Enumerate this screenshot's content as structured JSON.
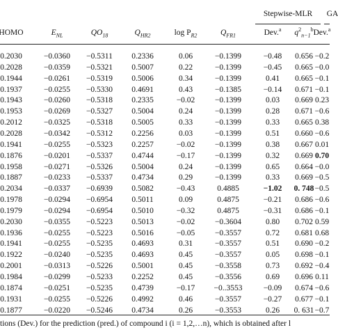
{
  "table": {
    "group_headers": [
      "Stepwise-MLR",
      "GA"
    ],
    "columns": [
      {
        "main": "HOMO"
      },
      {
        "main": "E",
        "sub": "NL"
      },
      {
        "main": "QO",
        "sub": "18"
      },
      {
        "main": "Q",
        "sub": "HR2"
      },
      {
        "main": "log P",
        "sub": "R2"
      },
      {
        "main": "Q",
        "sub": "FR1"
      },
      {
        "main": "Dev.",
        "sup": "a"
      },
      {
        "main": "q",
        "sup": "2",
        "sub": "n−1",
        "sup2": "b"
      },
      {
        "main": "Dev.",
        "sup": "a"
      }
    ],
    "rows": [
      [
        "0.2030",
        "−0.0360",
        "−0.5311",
        "0.2336",
        "0.06",
        "−0.1399",
        "−0.48",
        "0.656",
        "−0.2"
      ],
      [
        "0.2028",
        "−0.0359",
        "−0.5321",
        "0.5007",
        "0.22",
        "−0.1399",
        "−0.45",
        "0.665",
        "−0.0"
      ],
      [
        "0.1944",
        "−0.0261",
        "−0.5319",
        "0.5006",
        "0.34",
        "−0.1399",
        "0.41",
        "0.665",
        "−0.1"
      ],
      [
        "0.1937",
        "−0.0255",
        "−0.5330",
        "0.4691",
        "0.43",
        "−0.1385",
        "−0.14",
        "0.671",
        "−0.1"
      ],
      [
        "0.1943",
        "−0.0260",
        "−0.5318",
        "0.2335",
        "−0.02",
        "−0.1399",
        "0.03",
        "0.669",
        "0.23"
      ],
      [
        "0.1953",
        "−0.0269",
        "−0.5327",
        "0.5004",
        "0.24",
        "−0.1399",
        "0.28",
        "0.671",
        "−0.6"
      ],
      [
        "0.2012",
        "−0.0325",
        "−0.5318",
        "0.5005",
        "0.33",
        "−0.1399",
        "0.33",
        "0.665",
        "0.38"
      ],
      [
        "0.2028",
        "−0.0342",
        "−0.5312",
        "0.2256",
        "0.03",
        "−0.1399",
        "0.51",
        "0.660",
        "−0.6"
      ],
      [
        "0.1941",
        "−0.0255",
        "−0.5323",
        "0.2257",
        "−0.02",
        "−0.1399",
        "0.38",
        "0.667",
        "0.01"
      ],
      [
        "0.1876",
        "−0.0201",
        "−0.5337",
        "0.4744",
        "−0.17",
        "−0.1399",
        "0.32",
        "0.669",
        "0.70"
      ],
      [
        "0.1958",
        "−0.0271",
        "−0.5326",
        "0.5004",
        "0.24",
        "−0.1399",
        "0.65",
        "0.664",
        "−0.0"
      ],
      [
        "0.1887",
        "−0.0233",
        "−0.5337",
        "0.4734",
        "0.29",
        "−0.1399",
        "0.33",
        "0.669",
        "−0.5"
      ],
      [
        "0.2034",
        "−0.0337",
        "−0.6939",
        "0.5082",
        "−0.43",
        "0.4885",
        "−1.02",
        "0. 748",
        "−0.5"
      ],
      [
        "0.1978",
        "−0.0294",
        "−0.6954",
        "0.5011",
        "0.09",
        "0.4875",
        "−0.21",
        "0.686",
        "−0.6"
      ],
      [
        "0.1979",
        "−0.0294",
        "−0.6954",
        "0.5010",
        "−0.32",
        "0.4875",
        "−0.31",
        "0.686",
        "−0.1"
      ],
      [
        "0.2030",
        "−0.0355",
        "−0.5223",
        "0.5013",
        "−0.02",
        "−0.3604",
        "0.80",
        "0.702",
        "0.59"
      ],
      [
        "0.1936",
        "−0.0255",
        "−0.5223",
        "0.5016",
        "−0.05",
        "−0.3557",
        "0.72",
        "0.681",
        "0.68"
      ],
      [
        "0.1941",
        "−0.0255",
        "−0.5235",
        "0.4693",
        "0.31",
        "−0.3557",
        "0.51",
        "0.690",
        "−0.2"
      ],
      [
        "0.1922",
        "−0.0240",
        "−0.5235",
        "0.4693",
        "0.45",
        "−0.3557",
        "0.05",
        "0.698",
        "−0.1"
      ],
      [
        "0.2001",
        "−0.0313",
        "−0.5226",
        "0.5001",
        "0.45",
        "−0.3558",
        "0.73",
        "0.692",
        "−0.4"
      ],
      [
        "0.1984",
        "−0.0299",
        "−0.5233",
        "0.2252",
        "0.45",
        "−0.3556",
        "0.69",
        "0.696",
        "0.11"
      ],
      [
        "0.1874",
        "−0.0251",
        "−0.5235",
        "0.4739",
        "−0.17",
        "−0..3553",
        "−0.09",
        "0.674",
        "−0.6"
      ],
      [
        "0.1931",
        "−0.0255",
        "−0.5226",
        "0.4992",
        "0.46",
        "−0.3557",
        "−0.27",
        "0.677",
        "−0.1"
      ],
      [
        "0.1877",
        "−0.0220",
        "−0.5246",
        "0.4734",
        "0.26",
        "−0.3553",
        "0.26",
        "0. 631",
        "−0.7"
      ]
    ],
    "footnote": "tions (Dev.) for the prediction (pred.) of compound i (i = 1,2,…n), which is obtained after l"
  }
}
